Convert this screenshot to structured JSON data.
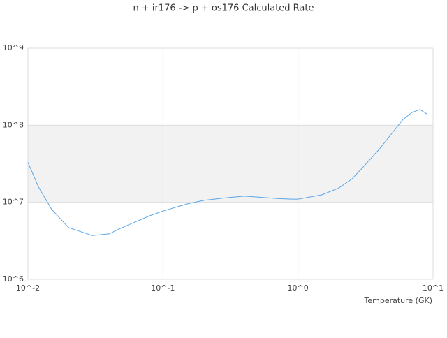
{
  "chart_data": {
    "type": "line",
    "title": "n + ir176 -> p + os176 Calculated Rate",
    "x_label": "Temperature (GK)",
    "log_x": true,
    "log_y": true,
    "xlim": [
      0.01,
      10
    ],
    "ylim": [
      1000000,
      1000000000
    ],
    "xticks": [
      {
        "value": 0.01,
        "label": "10^-2"
      },
      {
        "value": 0.1,
        "label": "10^-1"
      },
      {
        "value": 1,
        "label": "10^0"
      },
      {
        "value": 10,
        "label": "10^1"
      }
    ],
    "yticks": [
      {
        "value": 1000000,
        "label": "10^6"
      },
      {
        "value": 10000000,
        "label": "10^7"
      },
      {
        "value": 100000000,
        "label": "10^8"
      },
      {
        "value": 1000000000,
        "label": "10^9"
      }
    ],
    "band_color": "#f2f2f2",
    "x": [
      0.01,
      0.012,
      0.015,
      0.02,
      0.03,
      0.04,
      0.05,
      0.06,
      0.08,
      0.1,
      0.15,
      0.2,
      0.3,
      0.4,
      0.5,
      0.7,
      0.9,
      1,
      1.5,
      2,
      2.5,
      3,
      4,
      5,
      6,
      7,
      8,
      9
    ],
    "series": [
      {
        "color": "#5aa6e8",
        "values": [
          33000000,
          15700000,
          8100000,
          4700000,
          3700000,
          3900000,
          4700000,
          5400000,
          6700000,
          7700000,
          9500000,
          10600000,
          11500000,
          12000000,
          11700000,
          11200000,
          11000000,
          11000000,
          12500000,
          15300000,
          20000000,
          28000000,
          49000000,
          80000000,
          119000000,
          147000000,
          160000000,
          140000000
        ]
      }
    ]
  }
}
